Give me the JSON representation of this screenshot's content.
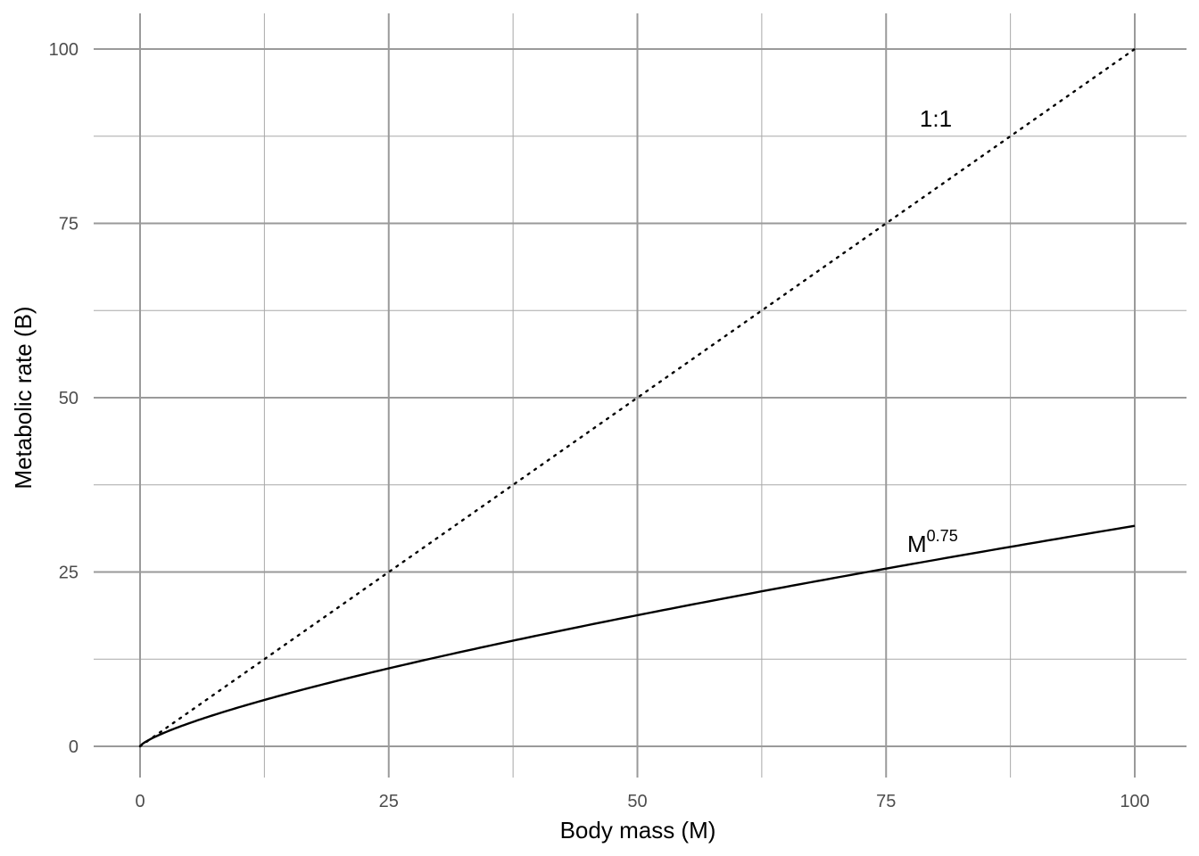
{
  "chart_data": {
    "type": "line",
    "title": "",
    "xlabel": "Body mass (M)",
    "ylabel": "Metabolic rate (B)",
    "xlim": [
      0,
      100
    ],
    "ylim": [
      0,
      100
    ],
    "x_ticks": [
      "0",
      "25",
      "50",
      "75",
      "100"
    ],
    "y_ticks": [
      "0",
      "25",
      "50",
      "75",
      "100"
    ],
    "grid": true,
    "series": [
      {
        "name": "1:1",
        "style": "dotted",
        "color": "#000000",
        "points": [
          [
            0,
            0
          ],
          [
            100,
            100
          ]
        ],
        "label": {
          "text": "1:1",
          "x": 80,
          "y": 90
        }
      },
      {
        "name": "M^0.75",
        "style": "solid",
        "color": "#000000",
        "function": "x^0.75",
        "points": [
          [
            0,
            0
          ],
          [
            1,
            1
          ],
          [
            5,
            3.34
          ],
          [
            10,
            5.62
          ],
          [
            25,
            11.18
          ],
          [
            50,
            18.8
          ],
          [
            75,
            25.49
          ],
          [
            100,
            31.62
          ]
        ],
        "label": {
          "text": "M",
          "superscript": "0.75",
          "x": 80,
          "y": 29
        }
      }
    ]
  }
}
